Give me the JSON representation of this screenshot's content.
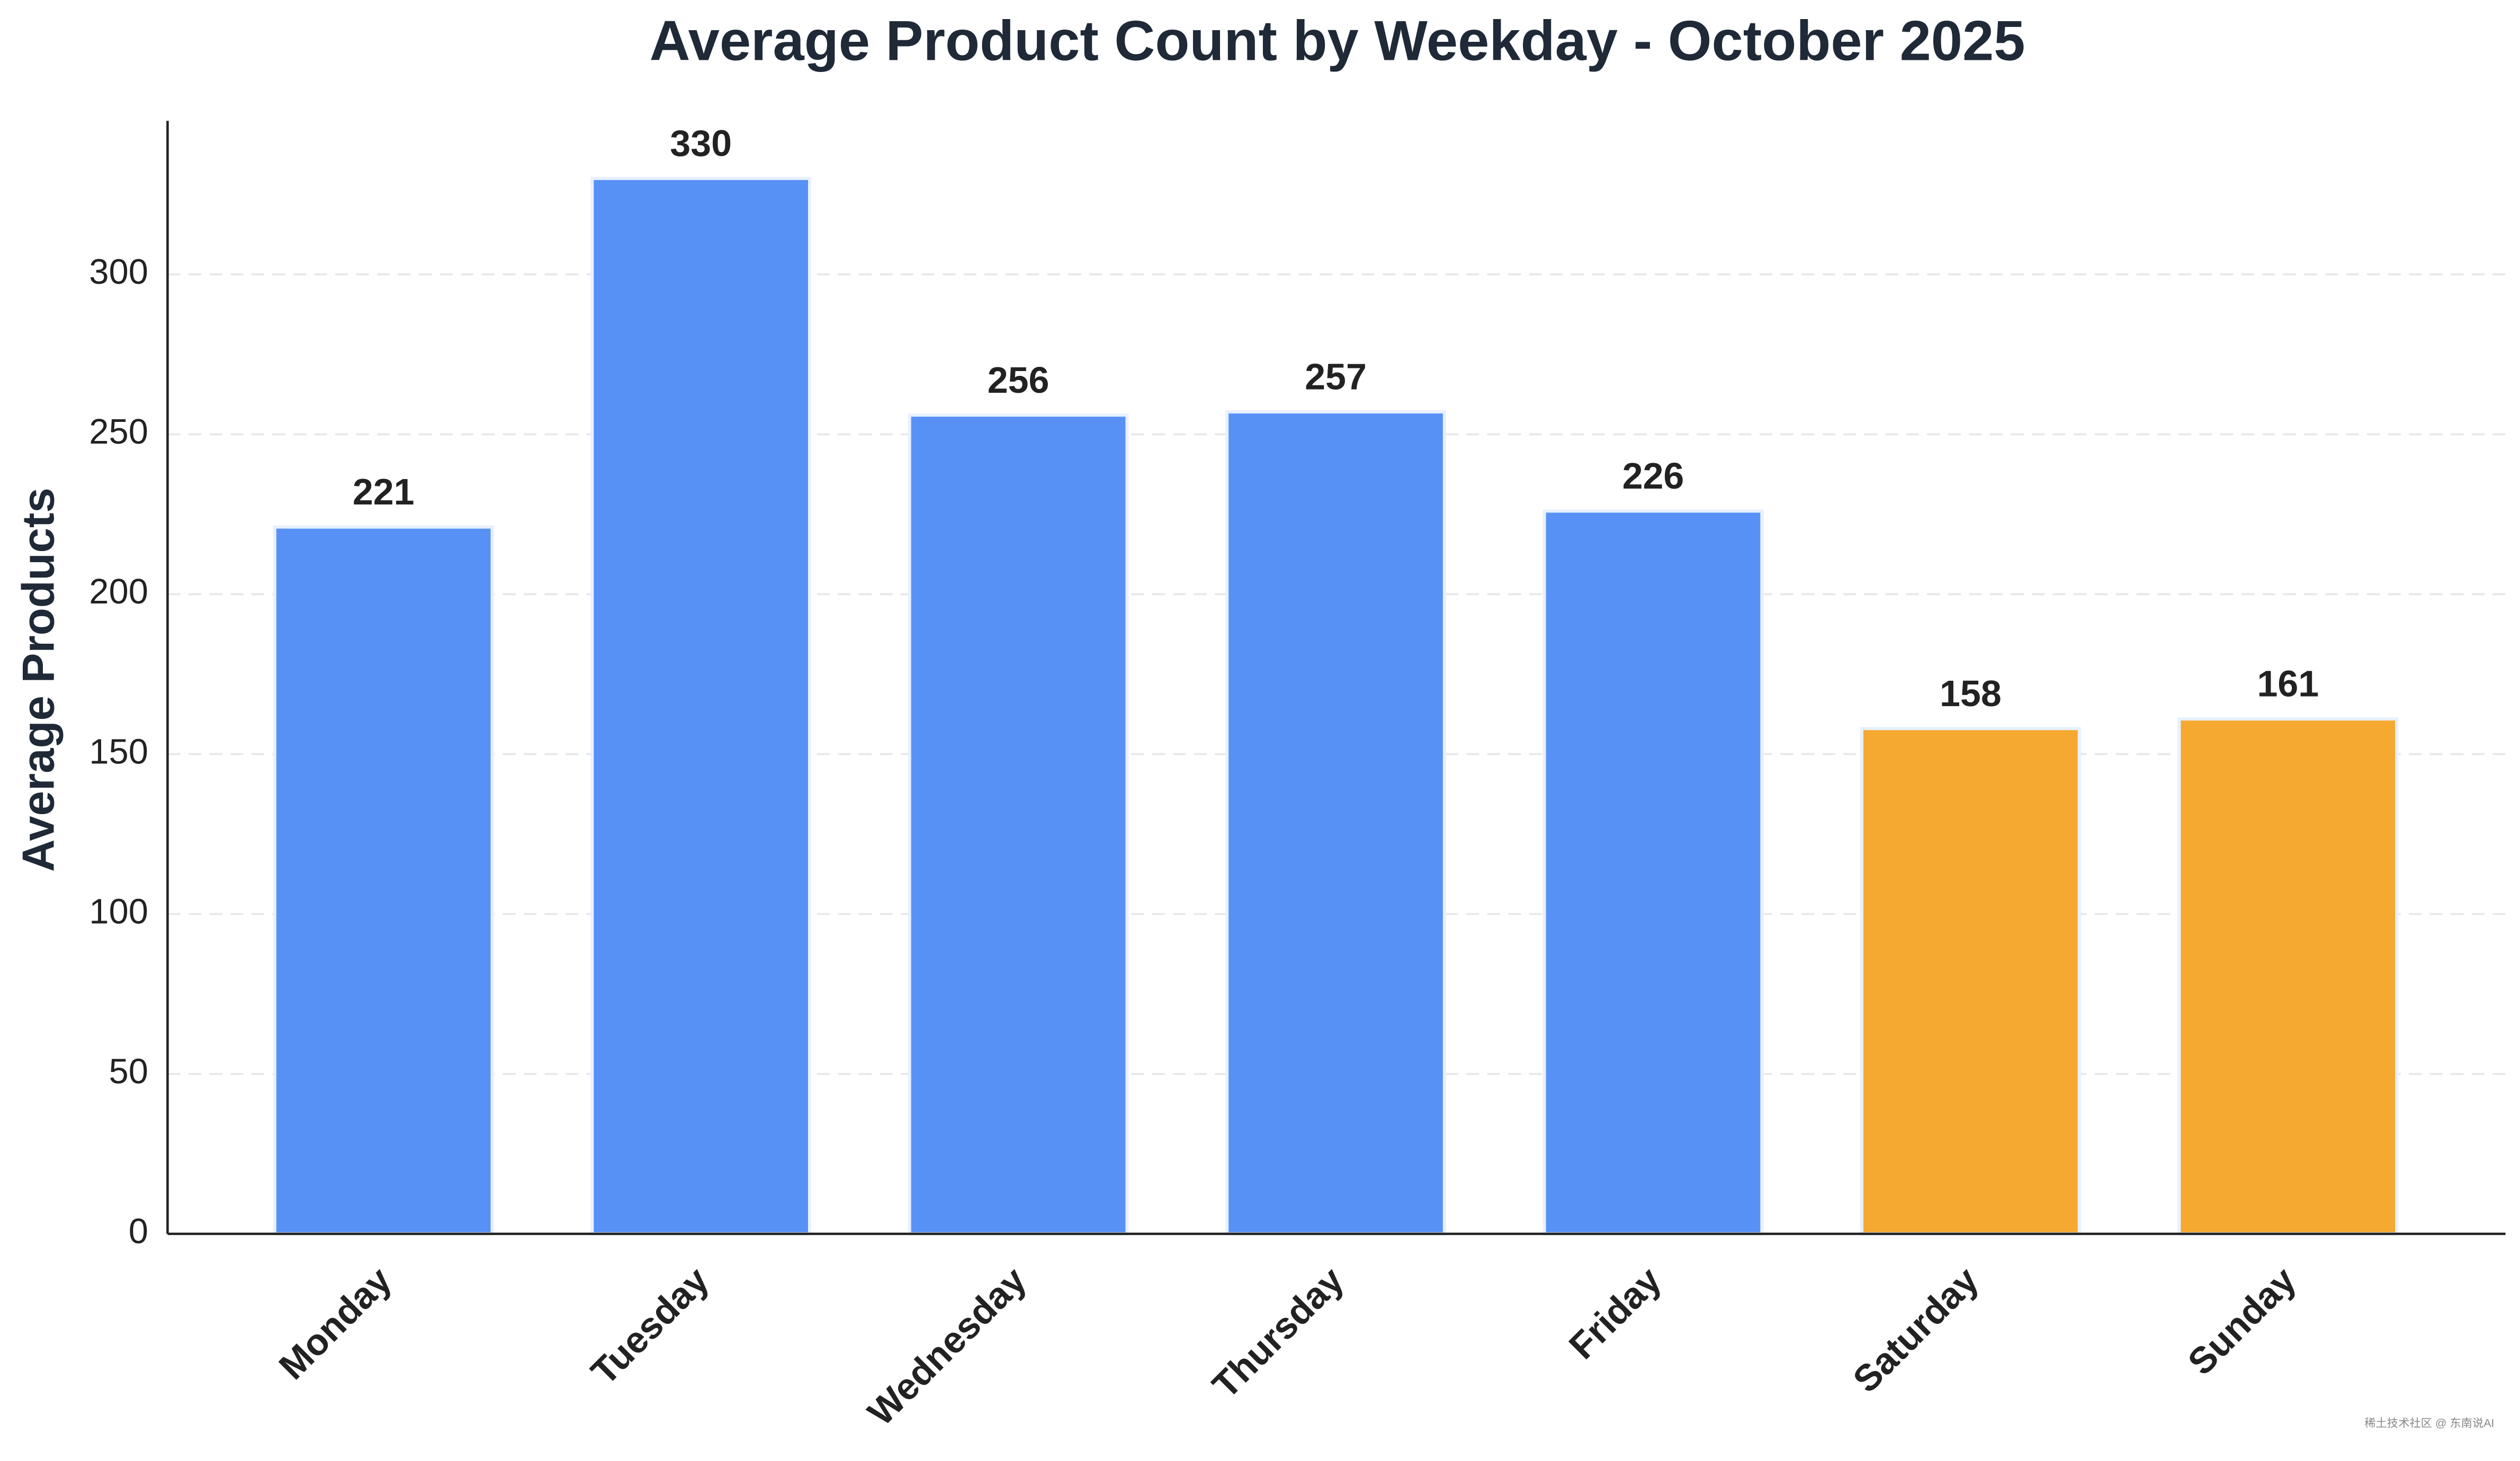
{
  "chart_data": {
    "type": "bar",
    "title": "Average Product Count by Weekday - October 2025",
    "y_label": "Average Products",
    "categories": [
      "Monday",
      "Tuesday",
      "Wednesday",
      "Thursday",
      "Friday",
      "Saturday",
      "Sunday"
    ],
    "values": [
      221,
      330,
      256,
      257,
      226,
      158,
      161
    ],
    "colors": [
      "#5891f5",
      "#5891f5",
      "#5891f5",
      "#5891f5",
      "#5891f5",
      "#f5a930",
      "#f5a930"
    ],
    "ylim": [
      0,
      348
    ],
    "yticks": [
      0,
      50,
      100,
      150,
      200,
      250,
      300
    ],
    "grid": true,
    "watermark": "稀土技术社区 @ 东南说AI"
  }
}
